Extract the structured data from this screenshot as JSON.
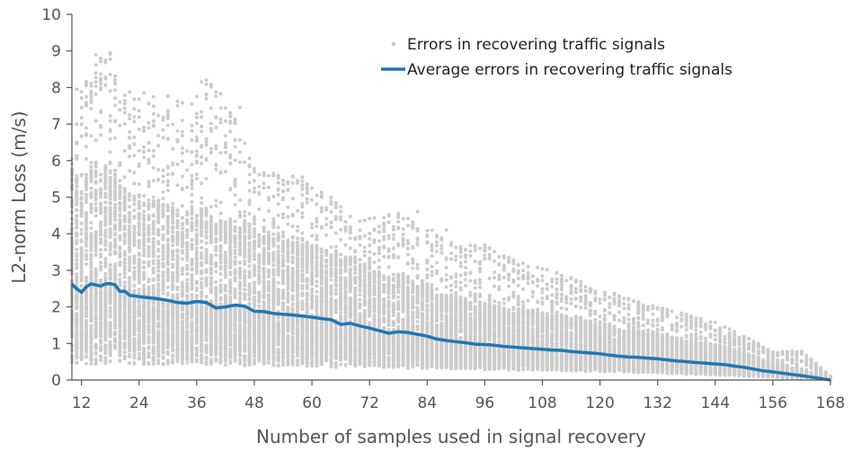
{
  "chart_data": {
    "type": "scatter",
    "xlabel": "Number of samples used in signal recovery",
    "ylabel": "L2-norm Loss (m/s)",
    "xlim": [
      10,
      168
    ],
    "ylim": [
      0,
      10
    ],
    "x_ticks": [
      12,
      24,
      36,
      48,
      60,
      72,
      84,
      96,
      108,
      120,
      132,
      144,
      156,
      168
    ],
    "y_ticks": [
      0,
      1,
      2,
      3,
      4,
      5,
      6,
      7,
      8,
      9,
      10
    ],
    "grid": false,
    "legend_position": "top-right",
    "colors": {
      "scatter": "#cccccc",
      "average": "#1f77b4",
      "axis": "#555555"
    },
    "series": [
      {
        "name": "Errors in recovering traffic signals",
        "kind": "scatter",
        "points_per_x": 140,
        "lower_bound": [
          [
            10,
            0.42
          ],
          [
            40,
            0.4
          ],
          [
            90,
            0.3
          ],
          [
            130,
            0.2
          ],
          [
            168,
            0.02
          ]
        ],
        "upper_bound": [
          [
            10,
            6.2
          ],
          [
            12,
            8.0
          ],
          [
            15,
            8.9
          ],
          [
            18,
            8.95
          ],
          [
            20,
            7.9
          ],
          [
            28,
            7.9
          ],
          [
            35,
            7.6
          ],
          [
            38,
            8.2
          ],
          [
            44,
            7.5
          ],
          [
            48,
            5.8
          ],
          [
            56,
            5.6
          ],
          [
            64,
            5.0
          ],
          [
            70,
            4.4
          ],
          [
            80,
            4.6
          ],
          [
            84,
            4.2
          ],
          [
            90,
            3.7
          ],
          [
            96,
            3.7
          ],
          [
            100,
            3.4
          ],
          [
            110,
            3.0
          ],
          [
            120,
            2.5
          ],
          [
            132,
            2.0
          ],
          [
            144,
            1.6
          ],
          [
            156,
            0.8
          ],
          [
            162,
            0.8
          ],
          [
            166,
            0.35
          ],
          [
            168,
            0.1
          ]
        ],
        "outliers": [
          {
            "x": 15,
            "y": 8.9
          },
          {
            "x": 16,
            "y": 8.8
          },
          {
            "x": 17,
            "y": 8.75
          },
          {
            "x": 18,
            "y": 8.95
          },
          {
            "x": 13,
            "y": 8.05
          },
          {
            "x": 14,
            "y": 7.8
          },
          {
            "x": 11,
            "y": 7.95
          },
          {
            "x": 37,
            "y": 8.15
          },
          {
            "x": 38,
            "y": 8.2
          },
          {
            "x": 35,
            "y": 7.55
          },
          {
            "x": 32,
            "y": 7.5
          },
          {
            "x": 43,
            "y": 6.8
          },
          {
            "x": 45,
            "y": 7.45
          },
          {
            "x": 58,
            "y": 5.55
          },
          {
            "x": 61,
            "y": 5.05
          },
          {
            "x": 82,
            "y": 4.6
          },
          {
            "x": 88,
            "y": 4.1
          }
        ]
      },
      {
        "name": "Average errors in recovering traffic signals",
        "kind": "line",
        "x": [
          10,
          11,
          12,
          13,
          14,
          15,
          16,
          17,
          18,
          19,
          20,
          21,
          22,
          24,
          26,
          28,
          30,
          32,
          34,
          36,
          38,
          40,
          42,
          44,
          46,
          48,
          50,
          52,
          54,
          56,
          58,
          60,
          62,
          64,
          66,
          68,
          70,
          72,
          74,
          76,
          78,
          80,
          82,
          84,
          86,
          88,
          90,
          92,
          94,
          96,
          98,
          100,
          102,
          104,
          106,
          108,
          110,
          112,
          114,
          116,
          118,
          120,
          122,
          124,
          126,
          128,
          130,
          132,
          134,
          136,
          138,
          140,
          142,
          144,
          146,
          148,
          150,
          152,
          154,
          156,
          158,
          160,
          162,
          164,
          166,
          167,
          168
        ],
        "y": [
          2.62,
          2.5,
          2.4,
          2.55,
          2.63,
          2.6,
          2.57,
          2.63,
          2.64,
          2.6,
          2.42,
          2.43,
          2.32,
          2.28,
          2.25,
          2.22,
          2.18,
          2.12,
          2.1,
          2.15,
          2.12,
          1.97,
          2.0,
          2.05,
          2.02,
          1.88,
          1.87,
          1.82,
          1.8,
          1.78,
          1.75,
          1.72,
          1.68,
          1.65,
          1.52,
          1.55,
          1.48,
          1.42,
          1.35,
          1.28,
          1.32,
          1.3,
          1.25,
          1.2,
          1.12,
          1.08,
          1.05,
          1.02,
          0.98,
          0.97,
          0.95,
          0.92,
          0.9,
          0.88,
          0.86,
          0.84,
          0.82,
          0.81,
          0.78,
          0.76,
          0.74,
          0.72,
          0.68,
          0.65,
          0.63,
          0.62,
          0.6,
          0.58,
          0.55,
          0.52,
          0.5,
          0.48,
          0.46,
          0.44,
          0.42,
          0.38,
          0.35,
          0.3,
          0.25,
          0.22,
          0.19,
          0.15,
          0.12,
          0.08,
          0.04,
          0.02,
          0.0
        ]
      }
    ]
  }
}
